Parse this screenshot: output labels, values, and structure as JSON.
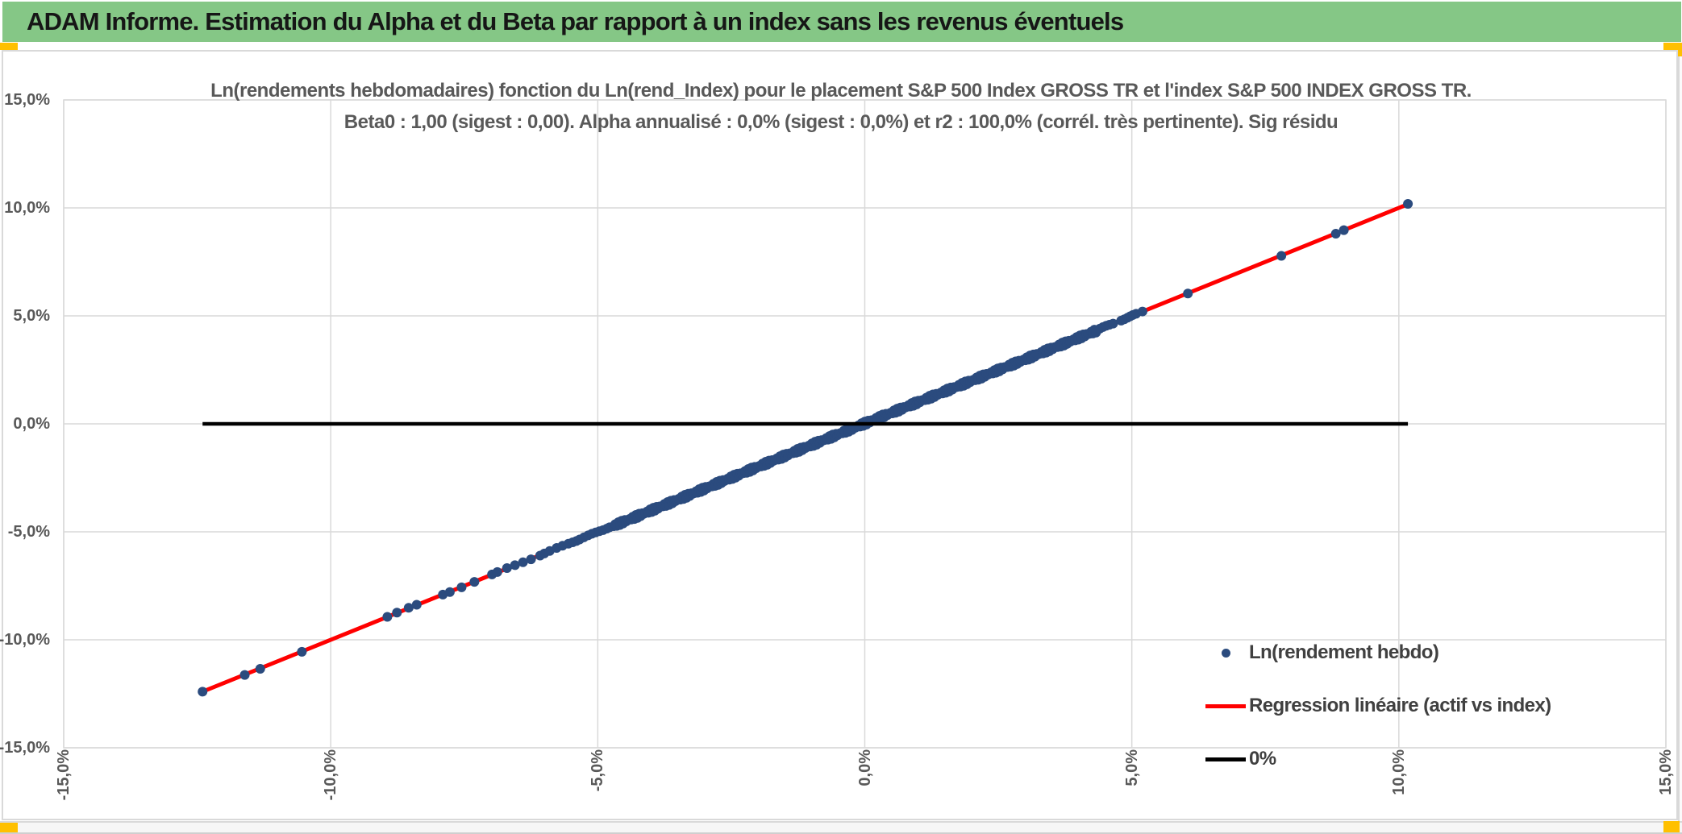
{
  "header": {
    "title": "ADAM Informe. Estimation du Alpha et du Beta par rapport à un index sans les revenus éventuels",
    "bar_color": "#85C786",
    "accent_color": "#FFC000"
  },
  "chart": {
    "title_line1": "Ln(rendements hebdomadaires) fonction du Ln(rend_Index) pour le placement S&P 500 Index GROSS TR et l'index S&P 500 INDEX GROSS TR.",
    "title_line2": "Beta0 : 1,00 (sigest : 0,00). Alpha annualisé : 0,0% (sigest : 0,0%) et r2 : 100,0% (corrél. très pertinente). Sig résidu",
    "legend": [
      {
        "label": "Ln(rendement hebdo)",
        "swatch": "dot",
        "color": "#2B4B7E"
      },
      {
        "label": "Regression linéaire (actif vs index)",
        "swatch": "line",
        "color": "#FF0000"
      },
      {
        "label": "0%",
        "swatch": "line",
        "color": "#000000"
      }
    ]
  },
  "chart_data": {
    "type": "scatter",
    "title": "Ln(rendements hebdomadaires) fonction du Ln(rend_Index) pour le placement S&P 500 Index GROSS TR et l'index S&P 500 INDEX GROSS TR. Beta0 : 1,00 (sigest : 0,00). Alpha annualisé : 0,0% (sigest : 0,0%) et r2 : 100,0% (corrél. très pertinente). Sig résidu",
    "xlabel": "",
    "ylabel": "",
    "xlim": [
      -15,
      15
    ],
    "ylim": [
      -15,
      15
    ],
    "grid": true,
    "grid_color": "#D9D9D9",
    "legend_position": "inside-bottom-right",
    "x_ticks": {
      "values": [
        -15,
        -10,
        -5,
        0,
        5,
        10,
        15
      ],
      "labels": [
        "-15,0%",
        "-10,0%",
        "-5,0%",
        "0,0%",
        "5,0%",
        "10,0%",
        "15,0%"
      ]
    },
    "y_ticks": {
      "values": [
        15,
        10,
        5,
        0,
        -5,
        -10,
        -15
      ],
      "labels": [
        "15,0%",
        "10,0%",
        "5,0%",
        "0,0%",
        "-5,0%",
        "-10,0%",
        "-15,0%"
      ]
    },
    "series": [
      {
        "name": "Ln(rendement hebdo)",
        "type": "scatter",
        "color": "#2B4B7E",
        "marker": "circle",
        "relation": "y = x (weekly Ln returns of asset vs index are identical, r2 = 100,0%)",
        "x_range_pct": [
          -12.4,
          10.17
        ],
        "x_discrete": [
          -12.4,
          -11.61,
          -11.32,
          -10.54,
          -8.94,
          -8.76,
          -8.54,
          -8.39,
          -7.9,
          -7.77,
          -7.55,
          -7.31,
          -6.98,
          -6.88,
          -6.7,
          -6.55,
          -6.4,
          -6.25,
          -6.08,
          -6.0,
          -5.9,
          -5.77,
          -5.66,
          -5.55,
          -5.47,
          -5.4,
          -5.34,
          -5.26,
          -5.18,
          -5.11,
          -5.04,
          -4.97,
          -4.9,
          -4.83,
          -4.78,
          4.4,
          4.46,
          4.52,
          4.58,
          4.65,
          4.8,
          4.86,
          4.92,
          4.97,
          5.02,
          5.08,
          5.2,
          6.05,
          7.8,
          8.82,
          8.97,
          10.17
        ],
        "x_dense_band": {
          "from": -4.72,
          "to": 4.32,
          "step": 0.03
        }
      },
      {
        "name": "Regression linéaire (actif vs index)",
        "type": "line",
        "color": "#FF0000",
        "points": [
          [
            -12.4,
            -12.4
          ],
          [
            10.17,
            10.17
          ]
        ],
        "slope_beta0": "1,00",
        "intercept_alpha": "0,0%"
      },
      {
        "name": "0%",
        "type": "line",
        "color": "#000000",
        "points": [
          [
            -12.4,
            0
          ],
          [
            10.17,
            0
          ]
        ]
      }
    ],
    "stats_in_title": {
      "beta0": "1,00",
      "beta0_sigest": "0,00",
      "alpha_annualise": "0,0%",
      "alpha_sigest": "0,0%",
      "r2": "100,0%",
      "correlation_note": "corrél. très pertinente"
    }
  }
}
